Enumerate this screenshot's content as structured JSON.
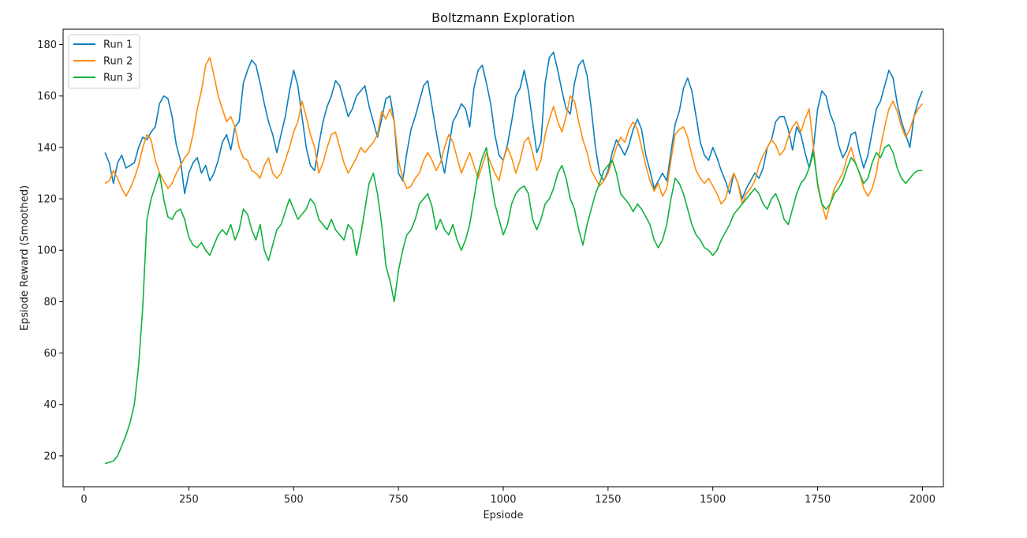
{
  "chart_data": {
    "type": "line",
    "title": "Boltzmann Exploration",
    "xlabel": "Epsiode",
    "ylabel": "Epsiode Reward (Smoothed)",
    "xlim": [
      -50,
      2050
    ],
    "ylim": [
      8,
      186
    ],
    "xticks": [
      0,
      250,
      500,
      750,
      1000,
      1250,
      1500,
      1750,
      2000
    ],
    "yticks": [
      20,
      40,
      60,
      80,
      100,
      120,
      140,
      160,
      180
    ],
    "grid": false,
    "legend_position": "top-left",
    "colors": {
      "Run 1": "#0a7fbc",
      "Run 2": "#ff8c0a",
      "Run 3": "#0eb23c"
    },
    "series": [
      {
        "name": "Run 1",
        "x": [
          50,
          60,
          70,
          80,
          90,
          100,
          110,
          120,
          130,
          140,
          150,
          160,
          170,
          180,
          190,
          200,
          210,
          220,
          230,
          240,
          250,
          260,
          270,
          280,
          290,
          300,
          310,
          320,
          330,
          340,
          350,
          360,
          370,
          380,
          390,
          400,
          410,
          420,
          430,
          440,
          450,
          460,
          470,
          480,
          490,
          500,
          510,
          520,
          530,
          540,
          550,
          560,
          570,
          580,
          590,
          600,
          610,
          620,
          630,
          640,
          650,
          660,
          670,
          680,
          690,
          700,
          710,
          720,
          730,
          740,
          750,
          760,
          770,
          780,
          790,
          800,
          810,
          820,
          830,
          840,
          850,
          860,
          870,
          880,
          890,
          900,
          910,
          920,
          930,
          940,
          950,
          960,
          970,
          980,
          990,
          1000,
          1010,
          1020,
          1030,
          1040,
          1050,
          1060,
          1070,
          1080,
          1090,
          1100,
          1110,
          1120,
          1130,
          1140,
          1150,
          1160,
          1170,
          1180,
          1190,
          1200,
          1210,
          1220,
          1230,
          1240,
          1250,
          1260,
          1270,
          1280,
          1290,
          1300,
          1310,
          1320,
          1330,
          1340,
          1350,
          1360,
          1370,
          1380,
          1390,
          1400,
          1410,
          1420,
          1430,
          1440,
          1450,
          1460,
          1470,
          1480,
          1490,
          1500,
          1510,
          1520,
          1530,
          1540,
          1550,
          1560,
          1570,
          1580,
          1590,
          1600,
          1610,
          1620,
          1630,
          1640,
          1650,
          1660,
          1670,
          1680,
          1690,
          1700,
          1710,
          1720,
          1730,
          1740,
          1750,
          1760,
          1770,
          1780,
          1790,
          1800,
          1810,
          1820,
          1830,
          1840,
          1850,
          1860,
          1870,
          1880,
          1890,
          1900,
          1910,
          1920,
          1930,
          1940,
          1950,
          1960,
          1970,
          1980,
          1990,
          2000
        ],
        "values": [
          138,
          134,
          126,
          134,
          137,
          132,
          133,
          134,
          140,
          144,
          143,
          146,
          148,
          157,
          160,
          159,
          152,
          141,
          135,
          122,
          130,
          134,
          136,
          130,
          133,
          127,
          130,
          135,
          142,
          145,
          139,
          148,
          150,
          165,
          170,
          174,
          172,
          165,
          157,
          150,
          145,
          138,
          145,
          152,
          162,
          170,
          164,
          152,
          140,
          133,
          131,
          141,
          150,
          156,
          160,
          166,
          164,
          158,
          152,
          155,
          160,
          162,
          164,
          156,
          150,
          144,
          151,
          159,
          160,
          150,
          130,
          127,
          138,
          147,
          152,
          158,
          164,
          166,
          156,
          146,
          137,
          130,
          140,
          150,
          153,
          157,
          155,
          148,
          163,
          170,
          172,
          165,
          157,
          145,
          137,
          135,
          141,
          150,
          160,
          163,
          170,
          162,
          150,
          138,
          142,
          165,
          175,
          177,
          170,
          162,
          155,
          153,
          165,
          172,
          174,
          168,
          155,
          140,
          130,
          127,
          131,
          138,
          143,
          140,
          137,
          141,
          147,
          151,
          147,
          137,
          131,
          124,
          127,
          130,
          127,
          138,
          149,
          154,
          163,
          167,
          162,
          152,
          142,
          137,
          135,
          140,
          136,
          131,
          127,
          122,
          130,
          126,
          120,
          124,
          127,
          130,
          128,
          132,
          140,
          143,
          150,
          152,
          152,
          147,
          139,
          148,
          145,
          138,
          132,
          140,
          155,
          162,
          160,
          153,
          149,
          141,
          136,
          139,
          145,
          146,
          138,
          132,
          137,
          146,
          155,
          158,
          164,
          170,
          167,
          157,
          150,
          145,
          140,
          152,
          158,
          162
        ]
      },
      {
        "name": "Run 2",
        "x": [
          50,
          60,
          70,
          80,
          90,
          100,
          110,
          120,
          130,
          140,
          150,
          160,
          170,
          180,
          190,
          200,
          210,
          220,
          230,
          240,
          250,
          260,
          270,
          280,
          290,
          300,
          310,
          320,
          330,
          340,
          350,
          360,
          370,
          380,
          390,
          400,
          410,
          420,
          430,
          440,
          450,
          460,
          470,
          480,
          490,
          500,
          510,
          520,
          530,
          540,
          550,
          560,
          570,
          580,
          590,
          600,
          610,
          620,
          630,
          640,
          650,
          660,
          670,
          680,
          690,
          700,
          710,
          720,
          730,
          740,
          750,
          760,
          770,
          780,
          790,
          800,
          810,
          820,
          830,
          840,
          850,
          860,
          870,
          880,
          890,
          900,
          910,
          920,
          930,
          940,
          950,
          960,
          970,
          980,
          990,
          1000,
          1010,
          1020,
          1030,
          1040,
          1050,
          1060,
          1070,
          1080,
          1090,
          1100,
          1110,
          1120,
          1130,
          1140,
          1150,
          1160,
          1170,
          1180,
          1190,
          1200,
          1210,
          1220,
          1230,
          1240,
          1250,
          1260,
          1270,
          1280,
          1290,
          1300,
          1310,
          1320,
          1330,
          1340,
          1350,
          1360,
          1370,
          1380,
          1390,
          1400,
          1410,
          1420,
          1430,
          1440,
          1450,
          1460,
          1470,
          1480,
          1490,
          1500,
          1510,
          1520,
          1530,
          1540,
          1550,
          1560,
          1570,
          1580,
          1590,
          1600,
          1610,
          1620,
          1630,
          1640,
          1650,
          1660,
          1670,
          1680,
          1690,
          1700,
          1710,
          1720,
          1730,
          1740,
          1750,
          1760,
          1770,
          1780,
          1790,
          1800,
          1810,
          1820,
          1830,
          1840,
          1850,
          1860,
          1870,
          1880,
          1890,
          1900,
          1910,
          1920,
          1930,
          1940,
          1950,
          1960,
          1970,
          1980,
          1990,
          2000
        ],
        "values": [
          126,
          127,
          131,
          128,
          124,
          121,
          124,
          128,
          133,
          140,
          145,
          143,
          135,
          130,
          127,
          124,
          126,
          130,
          133,
          136,
          138,
          145,
          155,
          162,
          172,
          175,
          168,
          160,
          155,
          150,
          152,
          148,
          140,
          136,
          135,
          131,
          130,
          128,
          133,
          136,
          130,
          128,
          130,
          135,
          140,
          146,
          150,
          158,
          152,
          145,
          140,
          130,
          134,
          140,
          145,
          146,
          140,
          134,
          130,
          133,
          136,
          140,
          138,
          140,
          142,
          145,
          154,
          151,
          155,
          150,
          135,
          128,
          124,
          125,
          128,
          130,
          135,
          138,
          135,
          131,
          134,
          140,
          145,
          142,
          136,
          130,
          134,
          138,
          133,
          128,
          133,
          138,
          134,
          130,
          127,
          135,
          140,
          136,
          130,
          135,
          142,
          144,
          138,
          131,
          135,
          145,
          151,
          156,
          150,
          146,
          152,
          160,
          158,
          150,
          143,
          138,
          131,
          128,
          125,
          127,
          130,
          135,
          140,
          144,
          142,
          147,
          150,
          147,
          140,
          133,
          127,
          123,
          126,
          121,
          124,
          135,
          145,
          147,
          148,
          144,
          137,
          131,
          128,
          126,
          128,
          125,
          122,
          118,
          120,
          126,
          130,
          126,
          118,
          122,
          124,
          127,
          133,
          137,
          140,
          143,
          141,
          137,
          139,
          144,
          148,
          150,
          146,
          151,
          155,
          140,
          125,
          118,
          112,
          118,
          124,
          127,
          130,
          136,
          140,
          134,
          130,
          124,
          121,
          124,
          130,
          140,
          148,
          155,
          158,
          154,
          148,
          144,
          147,
          152,
          155,
          157
        ]
      },
      {
        "name": "Run 3",
        "x": [
          50,
          60,
          70,
          80,
          90,
          100,
          110,
          120,
          130,
          140,
          150,
          160,
          170,
          180,
          190,
          200,
          210,
          220,
          230,
          240,
          250,
          260,
          270,
          280,
          290,
          300,
          310,
          320,
          330,
          340,
          350,
          360,
          370,
          380,
          390,
          400,
          410,
          420,
          430,
          440,
          450,
          460,
          470,
          480,
          490,
          500,
          510,
          520,
          530,
          540,
          550,
          560,
          570,
          580,
          590,
          600,
          610,
          620,
          630,
          640,
          650,
          660,
          670,
          680,
          690,
          700,
          710,
          720,
          730,
          740,
          750,
          760,
          770,
          780,
          790,
          800,
          810,
          820,
          830,
          840,
          850,
          860,
          870,
          880,
          890,
          900,
          910,
          920,
          930,
          940,
          950,
          960,
          970,
          980,
          990,
          1000,
          1010,
          1020,
          1030,
          1040,
          1050,
          1060,
          1070,
          1080,
          1090,
          1100,
          1110,
          1120,
          1130,
          1140,
          1150,
          1160,
          1170,
          1180,
          1190,
          1200,
          1210,
          1220,
          1230,
          1240,
          1250,
          1260,
          1270,
          1280,
          1290,
          1300,
          1310,
          1320,
          1330,
          1340,
          1350,
          1360,
          1370,
          1380,
          1390,
          1400,
          1410,
          1420,
          1430,
          1440,
          1450,
          1460,
          1470,
          1480,
          1490,
          1500,
          1510,
          1520,
          1530,
          1540,
          1550,
          1560,
          1570,
          1580,
          1590,
          1600,
          1610,
          1620,
          1630,
          1640,
          1650,
          1660,
          1670,
          1680,
          1690,
          1700,
          1710,
          1720,
          1730,
          1740,
          1750,
          1760,
          1770,
          1780,
          1790,
          1800,
          1810,
          1820,
          1830,
          1840,
          1850,
          1860,
          1870,
          1880,
          1890,
          1900,
          1910,
          1920,
          1930,
          1940,
          1950,
          1960,
          1970,
          1980,
          1990,
          2000
        ],
        "values": [
          17,
          17.5,
          18,
          20,
          24,
          28,
          33,
          40,
          55,
          78,
          112,
          120,
          125,
          130,
          120,
          113,
          112,
          115,
          116,
          112,
          105,
          102,
          101,
          103,
          100,
          98,
          102,
          106,
          108,
          106,
          110,
          104,
          108,
          116,
          114,
          108,
          104,
          110,
          100,
          96,
          102,
          108,
          110,
          115,
          120,
          116,
          112,
          114,
          116,
          120,
          118,
          112,
          110,
          108,
          112,
          108,
          106,
          104,
          110,
          108,
          98,
          106,
          116,
          126,
          130,
          122,
          110,
          94,
          88,
          80,
          92,
          100,
          106,
          108,
          112,
          118,
          120,
          122,
          117,
          108,
          112,
          108,
          106,
          110,
          104,
          100,
          104,
          110,
          120,
          130,
          136,
          140,
          128,
          118,
          112,
          106,
          110,
          118,
          122,
          124,
          125,
          122,
          112,
          108,
          112,
          118,
          120,
          124,
          130,
          133,
          128,
          120,
          116,
          108,
          102,
          110,
          116,
          122,
          126,
          131,
          133,
          135,
          130,
          122,
          120,
          118,
          115,
          118,
          116,
          113,
          110,
          104,
          101,
          104,
          110,
          120,
          128,
          126,
          122,
          116,
          110,
          106,
          104,
          101,
          100,
          98,
          100,
          104,
          107,
          110,
          114,
          116,
          118,
          120,
          122,
          124,
          122,
          118,
          116,
          120,
          122,
          118,
          112,
          110,
          116,
          122,
          126,
          128,
          132,
          138,
          126,
          118,
          116,
          118,
          122,
          124,
          127,
          132,
          136,
          134,
          130,
          126,
          128,
          134,
          138,
          136,
          140,
          141,
          138,
          132,
          128,
          126,
          128,
          130,
          131,
          131
        ]
      }
    ]
  }
}
